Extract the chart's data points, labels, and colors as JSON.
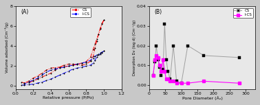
{
  "panel_A": {
    "label": "(A)",
    "xlabel": "Relative pressure (P/Po)",
    "ylabel": "Volume adsorbed (Cm⁻³/g)",
    "xlim": [
      0.0,
      1.2
    ],
    "ylim": [
      -0.3,
      8
    ],
    "yticks": [
      0,
      2,
      4,
      6,
      8
    ],
    "xticks": [
      0.0,
      0.2,
      0.4,
      0.6,
      0.8,
      1.0,
      1.2
    ],
    "CS_adsorption_x": [
      0.07,
      0.1,
      0.15,
      0.2,
      0.25,
      0.3,
      0.35,
      0.4,
      0.45,
      0.5,
      0.55,
      0.6,
      0.65,
      0.7,
      0.75,
      0.8,
      0.85,
      0.88,
      0.9,
      0.92,
      0.94,
      0.96,
      0.98,
      1.0
    ],
    "CS_adsorption_y": [
      0.4,
      0.3,
      0.35,
      0.5,
      0.7,
      0.9,
      1.1,
      1.3,
      1.6,
      1.9,
      2.1,
      2.2,
      2.2,
      2.15,
      2.1,
      2.2,
      2.5,
      3.0,
      3.8,
      4.5,
      5.2,
      5.8,
      6.3,
      6.6
    ],
    "CS_desorption_x": [
      1.0,
      0.98,
      0.96,
      0.94,
      0.92,
      0.9,
      0.88,
      0.85,
      0.8,
      0.75,
      0.7,
      0.65,
      0.6,
      0.55,
      0.5,
      0.45,
      0.4,
      0.35,
      0.3,
      0.25,
      0.2,
      0.15,
      0.1
    ],
    "CS_desorption_y": [
      6.6,
      6.2,
      5.7,
      5.2,
      4.7,
      4.2,
      3.7,
      2.9,
      2.45,
      2.3,
      2.2,
      2.1,
      2.0,
      1.95,
      1.9,
      1.85,
      1.8,
      1.6,
      1.3,
      1.0,
      0.8,
      0.5,
      0.3
    ],
    "ICS_adsorption_x": [
      0.07,
      0.1,
      0.15,
      0.2,
      0.25,
      0.3,
      0.35,
      0.4,
      0.45,
      0.5,
      0.55,
      0.6,
      0.65,
      0.7,
      0.75,
      0.8,
      0.85,
      0.88,
      0.9,
      0.92,
      0.94,
      0.96,
      0.98,
      1.0
    ],
    "ICS_adsorption_y": [
      0.1,
      0.1,
      0.15,
      0.2,
      0.3,
      0.4,
      0.55,
      0.7,
      0.9,
      1.1,
      1.3,
      1.5,
      1.7,
      1.8,
      1.9,
      2.0,
      2.1,
      2.3,
      2.6,
      2.9,
      3.1,
      3.2,
      3.35,
      3.5
    ],
    "ICS_desorption_x": [
      1.0,
      0.98,
      0.96,
      0.94,
      0.92,
      0.9,
      0.88,
      0.85,
      0.8,
      0.75,
      0.7,
      0.65,
      0.6,
      0.55,
      0.5,
      0.45,
      0.4,
      0.35,
      0.3,
      0.25,
      0.2,
      0.15,
      0.1
    ],
    "ICS_desorption_y": [
      3.5,
      3.4,
      3.3,
      3.2,
      3.1,
      3.0,
      2.8,
      2.6,
      2.4,
      2.3,
      2.2,
      2.1,
      2.0,
      1.9,
      1.8,
      1.7,
      1.6,
      1.4,
      1.1,
      0.8,
      0.6,
      0.4,
      0.2
    ],
    "CS_color": "#FF0000",
    "ICS_color": "#0000FF",
    "CS_label": "CS",
    "ICS_label": "I-CS",
    "bg_color": "#e8e8e8"
  },
  "panel_B": {
    "label": "(B)",
    "xlabel": "Pore Diameter (Åₓ)",
    "ylabel": "Desorption Dv (log d) (Cm⁻³/g)",
    "xlim": [
      0,
      330
    ],
    "ylim": [
      -0.002,
      0.04
    ],
    "yticks": [
      0.0,
      0.01,
      0.02,
      0.03,
      0.04
    ],
    "xticks": [
      0,
      50,
      100,
      150,
      200,
      250,
      300
    ],
    "CS_x": [
      12,
      18,
      22,
      27,
      32,
      37,
      43,
      48,
      53,
      58,
      65,
      75,
      85,
      100,
      120,
      170,
      280
    ],
    "CS_y": [
      0.005,
      0.012,
      0.02,
      0.013,
      0.009,
      0.005,
      0.008,
      0.031,
      0.013,
      0.007,
      0.003,
      0.02,
      0.002,
      0.001,
      0.02,
      0.015,
      0.014
    ],
    "ICS_x": [
      12,
      18,
      22,
      27,
      32,
      37,
      43,
      48,
      53,
      58,
      65,
      75,
      85,
      100,
      120,
      170,
      280
    ],
    "ICS_y": [
      0.005,
      0.013,
      0.015,
      0.014,
      0.01,
      0.007,
      0.013,
      0.007,
      0.003,
      0.003,
      0.002,
      0.002,
      0.001,
      0.001,
      0.001,
      0.002,
      0.001
    ],
    "CS_color": "#a0a0a0",
    "ICS_color": "#FF00FF",
    "CS_label": "CS",
    "ICS_label": "I-CS",
    "bg_color": "#e8e8e8"
  },
  "fig_bg": "#c8c8c8"
}
